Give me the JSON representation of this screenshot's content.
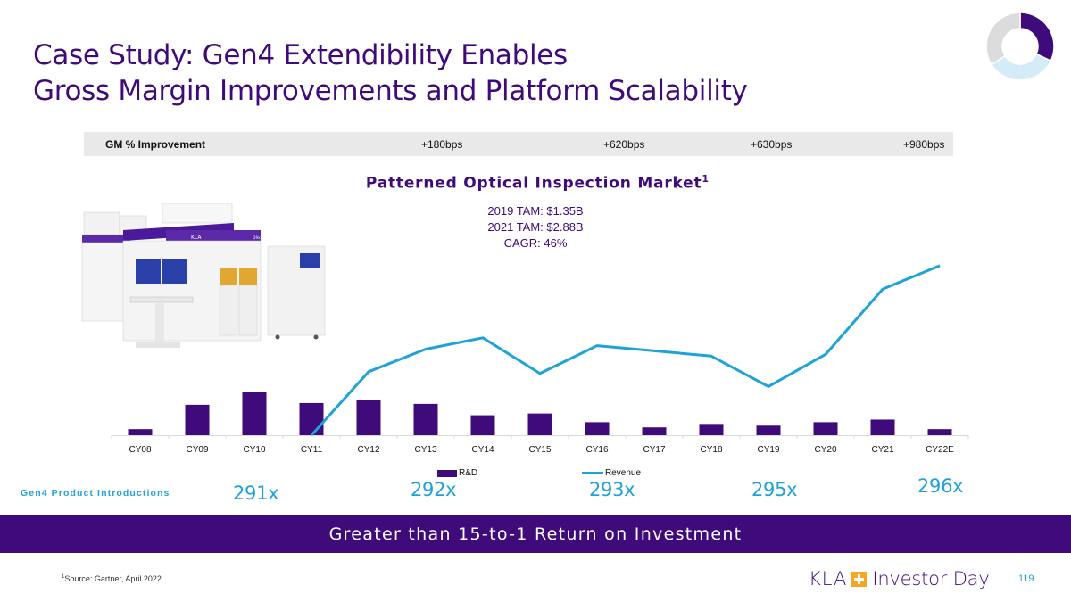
{
  "slide": {
    "title_line1": "Case Study: Gen4 Extendibility Enables",
    "title_line2": "Gross Margin Improvements and Platform Scalability",
    "progress_donut": {
      "segments": [
        {
          "name": "current",
          "fraction": 0.32,
          "color": "#3f0a7a"
        },
        {
          "name": "next",
          "fraction": 0.34,
          "color": "#d3ecf8"
        },
        {
          "name": "remaining",
          "fraction": 0.34,
          "color": "#dcdcdc"
        }
      ]
    }
  },
  "gm_row": {
    "label": "GM % Improvement",
    "values": [
      "+180bps",
      "+620bps",
      "+630bps",
      "+980bps"
    ]
  },
  "chart_header": {
    "title": "Patterned Optical Inspection Market",
    "footnote_marker": "1",
    "tam_lines": [
      "2019 TAM: $1.35B",
      "2021 TAM: $2.88B",
      "CAGR: 46%"
    ]
  },
  "product_image": {
    "alt": "KLA 29xx patterned wafer inspection system"
  },
  "chart_data": {
    "type": "bar+line",
    "title": "Patterned Optical Inspection Market",
    "categories": [
      "CY08",
      "CY09",
      "CY10",
      "CY11",
      "CY12",
      "CY13",
      "CY14",
      "CY15",
      "CY16",
      "CY17",
      "CY18",
      "CY19",
      "CY20",
      "CY21",
      "CY22E"
    ],
    "series": [
      {
        "name": "R&D",
        "type": "bar",
        "color": "#3f0a7a",
        "values": [
          7,
          35,
          50,
          37,
          41,
          36,
          23,
          25,
          15,
          9,
          13,
          11,
          15,
          18,
          7
        ]
      },
      {
        "name": "Revenue",
        "type": "line",
        "color": "#1ea2d9",
        "values": [
          null,
          null,
          null,
          0,
          73,
          99,
          112,
          71,
          103,
          97,
          91,
          56,
          93,
          168,
          195
        ]
      }
    ],
    "units": "relative (no y-axis shown)",
    "ylim": [
      0,
      200
    ],
    "xlabel": "",
    "ylabel": "",
    "grid": false,
    "legend": {
      "position": "bottom",
      "entries": [
        "R&D",
        "Revenue"
      ]
    }
  },
  "gen4": {
    "label": "Gen4 Product Introductions",
    "products": [
      "291x",
      "292x",
      "293x",
      "295x",
      "296x"
    ]
  },
  "banner": {
    "text": "Greater than 15-to-1 Return on Investment"
  },
  "footer": {
    "source_marker": "1",
    "source": "Source: Gartner, April 2022",
    "logo_kla": "KLA",
    "logo_text": "Investor Day",
    "page_number": "119"
  }
}
